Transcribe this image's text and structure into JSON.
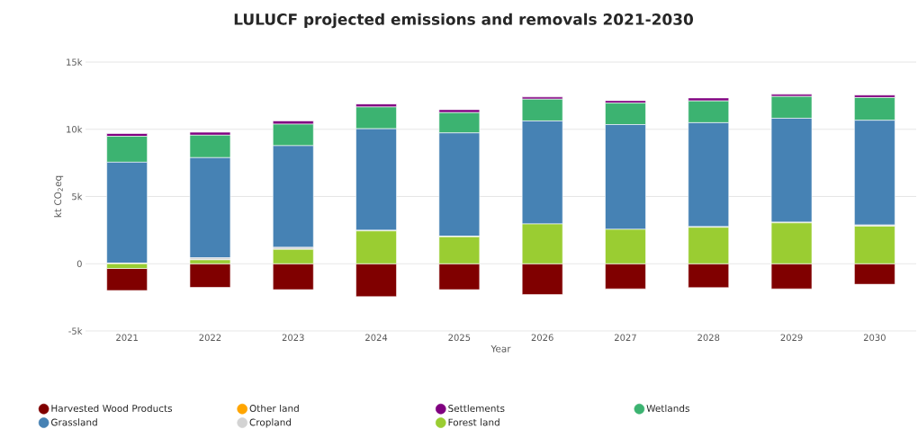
{
  "chart_data": {
    "type": "bar",
    "stacked": true,
    "title": "LULUCF projected emissions and removals 2021-2030",
    "xlabel": "Year",
    "ylabel": "kt CO$_{2}$eq",
    "categories": [
      "2021",
      "2022",
      "2023",
      "2024",
      "2025",
      "2026",
      "2027",
      "2028",
      "2029",
      "2030"
    ],
    "ylim": [
      -5000,
      15000
    ],
    "yticks": [
      {
        "value": -5000,
        "label": "-5k"
      },
      {
        "value": 0,
        "label": "0"
      },
      {
        "value": 5000,
        "label": "5k"
      },
      {
        "value": 10000,
        "label": "10k"
      },
      {
        "value": 15000,
        "label": "15k"
      }
    ],
    "grid": "y",
    "legend": "bottom",
    "series": [
      {
        "name": "Forest land",
        "color": "#9acd32",
        "values": [
          -350,
          290,
          1070,
          2440,
          2000,
          2960,
          2560,
          2710,
          3040,
          2800
        ]
      },
      {
        "name": "Cropland",
        "color": "#d3d3d3",
        "values": [
          50,
          150,
          150,
          50,
          50,
          null,
          null,
          50,
          50,
          80
        ]
      },
      {
        "name": "Grassland",
        "color": "#4682b4",
        "values": [
          7500,
          7450,
          7560,
          7550,
          7680,
          7660,
          7790,
          7730,
          7730,
          7790
        ]
      },
      {
        "name": "Wetlands",
        "color": "#3cb371",
        "values": [
          1930,
          1670,
          1600,
          1620,
          1510,
          1620,
          1600,
          1620,
          1620,
          1690
        ]
      },
      {
        "name": "Settlements",
        "color": "#800080",
        "values": [
          200,
          220,
          240,
          220,
          220,
          160,
          180,
          220,
          160,
          180
        ]
      },
      {
        "name": "Other land",
        "color": "#ffa500",
        "values": [
          0,
          0,
          0,
          0,
          0,
          0,
          0,
          0,
          0,
          0
        ]
      },
      {
        "name": "Harvested Wood Products",
        "color": "#800000",
        "values": [
          -1640,
          -1760,
          -1930,
          -2450,
          -1930,
          -2290,
          -1870,
          -1780,
          -1870,
          -1530
        ]
      }
    ]
  }
}
